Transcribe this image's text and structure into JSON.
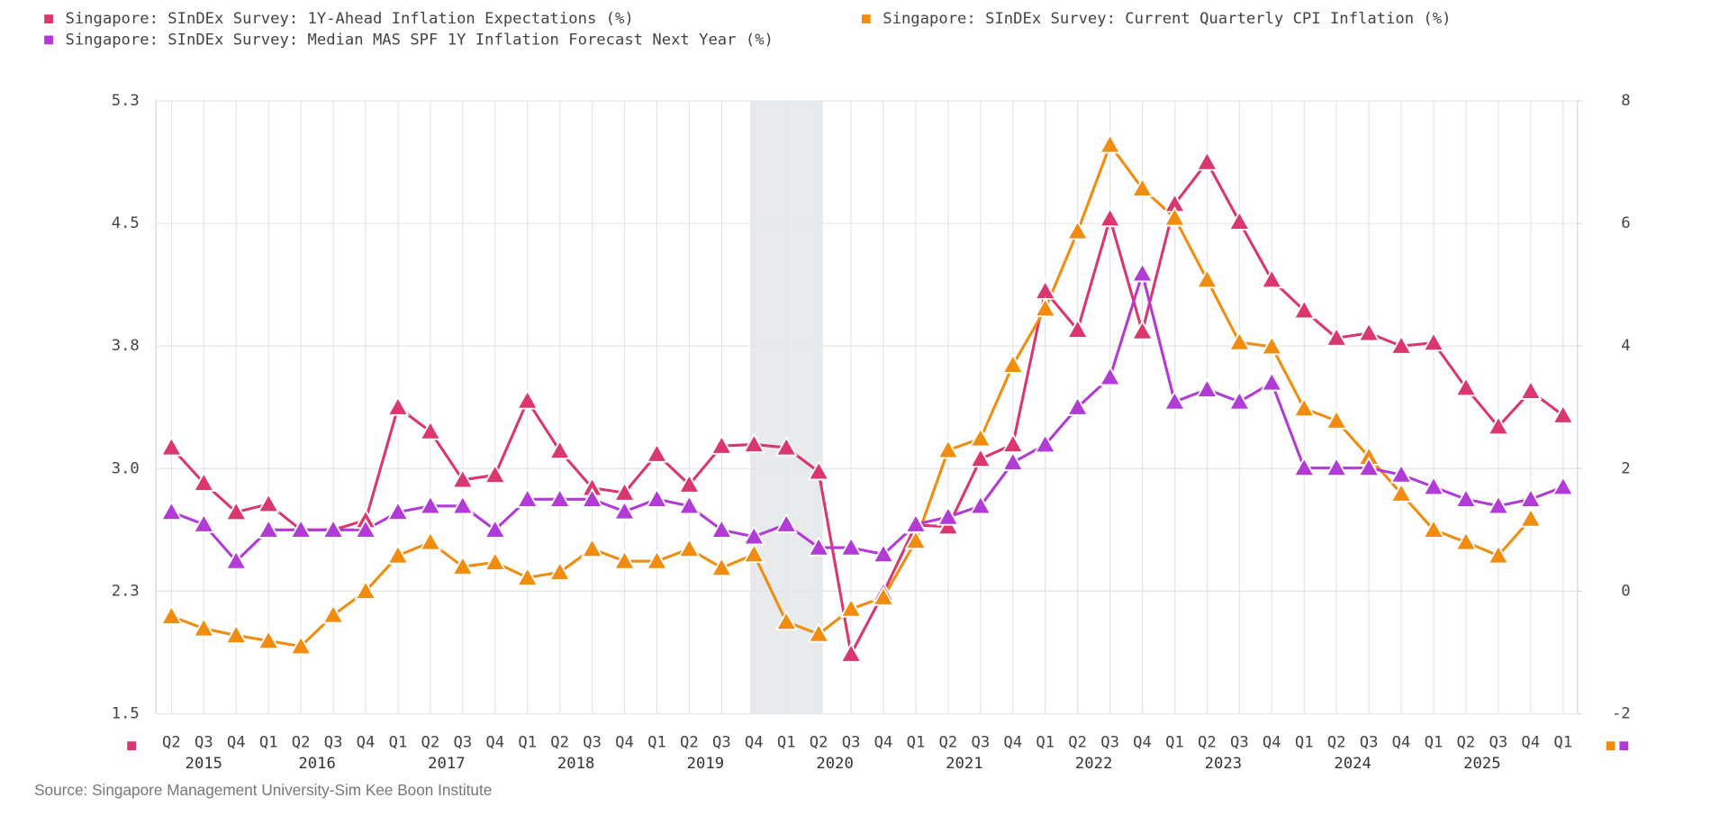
{
  "chart_data": {
    "type": "line",
    "categories": [
      "Q2",
      "Q3",
      "Q4",
      "Q1",
      "Q2",
      "Q3",
      "Q4",
      "Q1",
      "Q2",
      "Q3",
      "Q4",
      "Q1",
      "Q2",
      "Q3",
      "Q4",
      "Q1",
      "Q2",
      "Q3",
      "Q4",
      "Q1",
      "Q2",
      "Q3",
      "Q4",
      "Q1",
      "Q2",
      "Q3",
      "Q4",
      "Q1",
      "Q2",
      "Q3",
      "Q4",
      "Q1",
      "Q2",
      "Q3",
      "Q4",
      "Q1",
      "Q2",
      "Q3",
      "Q4",
      "Q1",
      "Q2",
      "Q3",
      "Q4",
      "Q1"
    ],
    "category_groups": [
      "2015",
      "2016",
      "2017",
      "2018",
      "2019",
      "2020",
      "2021",
      "2022",
      "2023",
      "2024",
      "2025"
    ],
    "series": [
      {
        "name": "Singapore: SInDEx Survey: 1Y-Ahead Inflation Expectations (%)",
        "color": "#d9376e",
        "values": [
          3.15,
          2.93,
          2.75,
          2.8,
          2.64,
          2.64,
          2.7,
          3.4,
          3.25,
          2.95,
          2.98,
          3.44,
          3.13,
          2.9,
          2.87,
          3.11,
          2.92,
          3.16,
          3.17,
          3.15,
          3.0,
          1.87,
          2.25,
          2.67,
          2.66,
          3.08,
          3.17,
          4.12,
          3.88,
          4.57,
          3.87,
          4.66,
          4.92,
          4.55,
          4.19,
          4.0,
          3.83,
          3.86,
          3.78,
          3.8,
          3.52,
          3.28,
          3.5,
          3.35
        ]
      },
      {
        "name": "Singapore: SInDEx Survey: Current Quarterly CPI Inflation (%)",
        "color": "#f28c0f",
        "axis": "y2",
        "values": [
          -0.41,
          -0.61,
          -0.72,
          -0.81,
          -0.9,
          -0.39,
          0.0,
          0.58,
          0.8,
          0.4,
          0.47,
          0.22,
          0.31,
          0.69,
          0.49,
          0.49,
          0.69,
          0.38,
          0.6,
          -0.5,
          -0.7,
          -0.29,
          -0.1,
          0.82,
          2.3,
          2.49,
          3.69,
          4.61,
          5.87,
          7.28,
          6.57,
          6.09,
          5.08,
          4.06,
          3.99,
          2.98,
          2.78,
          2.19,
          1.59,
          1.0,
          0.8,
          0.58,
          1.18,
          null
        ]
      },
      {
        "name": "Singapore: SInDEx Survey: Median MAS SPF 1Y Inflation Forecast Next Year (%)",
        "color": "#b23ad6",
        "axis": "y2",
        "values": [
          1.29,
          1.09,
          0.49,
          1.0,
          1.0,
          1.0,
          1.0,
          1.29,
          1.39,
          1.39,
          1.0,
          1.5,
          1.5,
          1.5,
          1.3,
          1.5,
          1.39,
          1.0,
          0.89,
          1.09,
          0.71,
          0.71,
          0.6,
          1.09,
          1.21,
          1.39,
          2.1,
          2.39,
          3.0,
          3.49,
          5.18,
          3.09,
          3.29,
          3.09,
          3.4,
          2.01,
          2.01,
          2.01,
          1.9,
          1.7,
          1.5,
          1.39,
          1.5,
          1.7
        ]
      }
    ],
    "ylim": [
      1.5,
      5.3
    ],
    "yticks": [
      1.5,
      {
        "value": 2.26,
        "label": "2.3"
      },
      {
        "value": 3.02,
        "label": "3.0"
      },
      {
        "value": 3.78,
        "label": "3.8"
      },
      {
        "value": 4.54,
        "label": "4.5"
      },
      5.3
    ],
    "y2lim": [
      -2,
      8
    ],
    "y2ticks": [
      -2,
      0,
      2,
      4,
      6,
      8
    ],
    "grid": true,
    "source": "Source: Singapore Management University-Sim Kee Boon Institute"
  }
}
